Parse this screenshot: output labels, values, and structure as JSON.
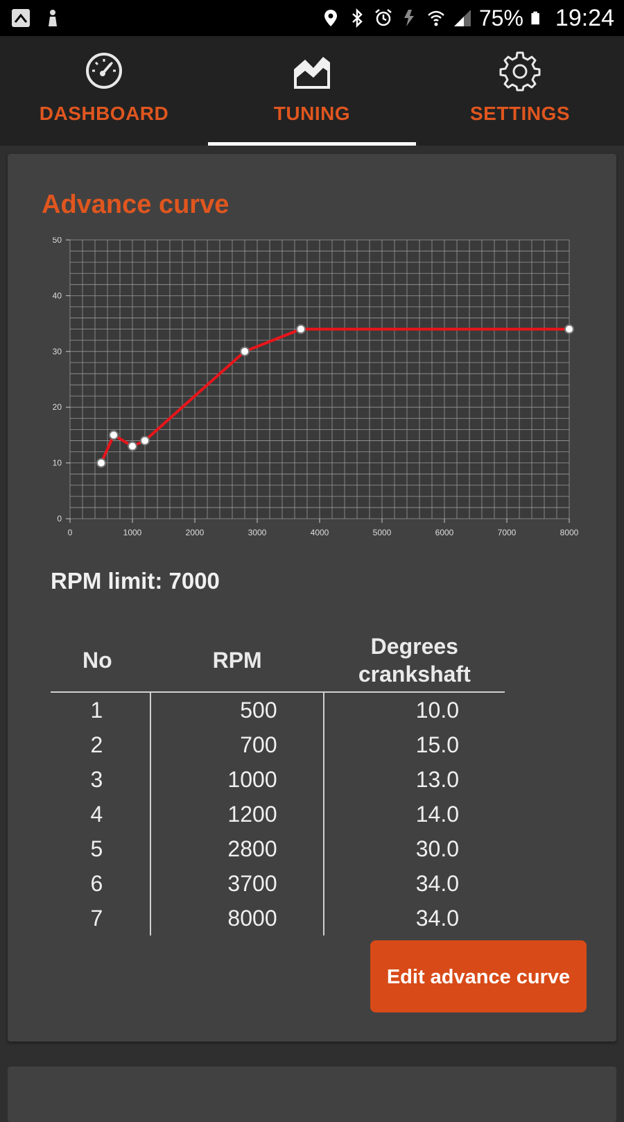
{
  "status_bar": {
    "battery": "75%",
    "time": "19:24"
  },
  "tabs": [
    {
      "label": "DASHBOARD",
      "icon": "speedometer-icon",
      "active": false
    },
    {
      "label": "TUNING",
      "icon": "chart-area-icon",
      "active": true
    },
    {
      "label": "SETTINGS",
      "icon": "gear-icon",
      "active": false
    }
  ],
  "card": {
    "title": "Advance curve",
    "rpm_limit_label": "RPM limit: 7000",
    "table_headers": {
      "no": "No",
      "rpm": "RPM",
      "deg_line1": "Degrees",
      "deg_line2": "crankshaft"
    },
    "rows": [
      {
        "no": "1",
        "rpm": "500",
        "deg": "10.0"
      },
      {
        "no": "2",
        "rpm": "700",
        "deg": "15.0"
      },
      {
        "no": "3",
        "rpm": "1000",
        "deg": "13.0"
      },
      {
        "no": "4",
        "rpm": "1200",
        "deg": "14.0"
      },
      {
        "no": "5",
        "rpm": "2800",
        "deg": "30.0"
      },
      {
        "no": "6",
        "rpm": "3700",
        "deg": "34.0"
      },
      {
        "no": "7",
        "rpm": "8000",
        "deg": "34.0"
      }
    ],
    "edit_button": "Edit advance curve"
  },
  "chart_data": {
    "type": "line",
    "title": "",
    "xlabel": "",
    "ylabel": "",
    "xlim": [
      0,
      8000
    ],
    "ylim": [
      0,
      50
    ],
    "x_ticks": [
      0,
      1000,
      2000,
      3000,
      4000,
      5000,
      6000,
      7000,
      8000
    ],
    "y_ticks": [
      0,
      10,
      20,
      30,
      40,
      50
    ],
    "grid": true,
    "x": [
      500,
      700,
      1000,
      1200,
      2800,
      3700,
      8000
    ],
    "values": [
      10,
      15,
      13,
      14,
      30,
      34,
      34
    ],
    "line_color": "#e8151b",
    "marker_color": "#ffffff",
    "grid_color": "#9a9a9a",
    "background": "#3a3a3a"
  },
  "colors": {
    "accent": "#e0561f",
    "button": "#d84a17"
  }
}
